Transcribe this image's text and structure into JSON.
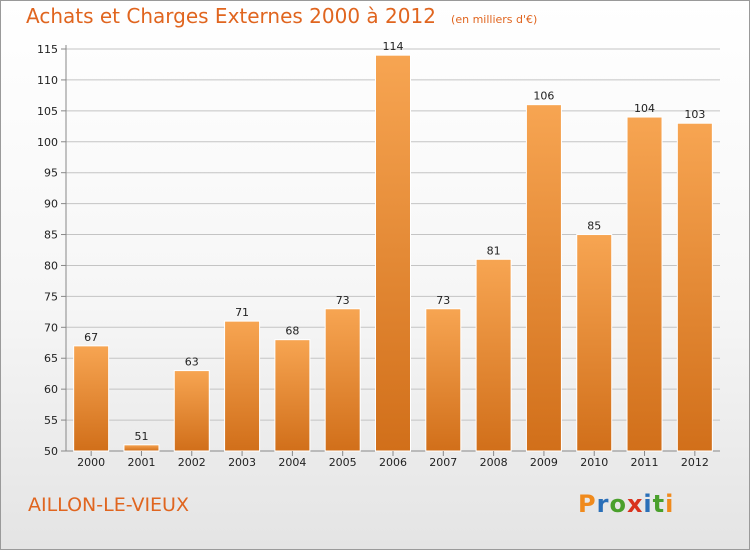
{
  "header": {
    "title": "Achats et Charges Externes 2000 à 2012",
    "subtitle": "(en milliers d'€)"
  },
  "footer": {
    "commune": "AILLON-LE-VIEUX",
    "brand": "Proxiti"
  },
  "colors": {
    "bar_light": "#f7a552",
    "bar_dark": "#d16f1a",
    "title": "#e0651f",
    "brand_letters": [
      "#f08a1c",
      "#2a6fb8",
      "#4aa02c",
      "#d9331e",
      "#2a6fb8",
      "#4aa02c",
      "#f08a1c"
    ]
  },
  "chart_data": {
    "type": "bar",
    "title": "Achats et Charges Externes 2000 à 2012",
    "subtitle": "(en milliers d'€)",
    "categories": [
      "2000",
      "2001",
      "2002",
      "2003",
      "2004",
      "2005",
      "2006",
      "2007",
      "2008",
      "2009",
      "2010",
      "2011",
      "2012"
    ],
    "values": [
      67,
      51,
      63,
      71,
      68,
      73,
      114,
      73,
      81,
      106,
      85,
      104,
      103
    ],
    "ylim": [
      50,
      115
    ],
    "yticks": [
      50,
      55,
      60,
      65,
      70,
      75,
      80,
      85,
      90,
      95,
      100,
      105,
      110,
      115
    ],
    "grid": true
  }
}
